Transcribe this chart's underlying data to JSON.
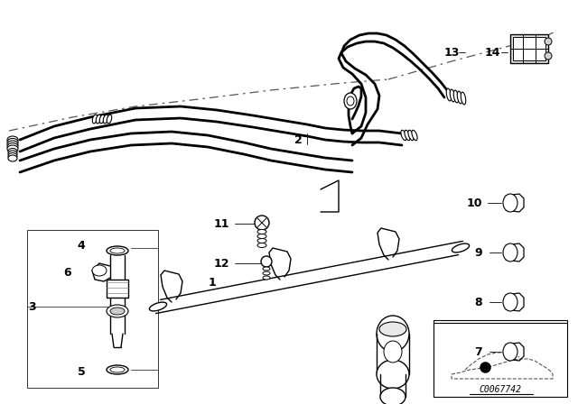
{
  "bg_color": "#ffffff",
  "line_color": "#000000",
  "watermark": "C0067742",
  "label_fontsize": 9,
  "label_fontweight": "bold",
  "hose_lw": 2.0,
  "thin_lw": 1.0,
  "dashed_color": "#444444"
}
